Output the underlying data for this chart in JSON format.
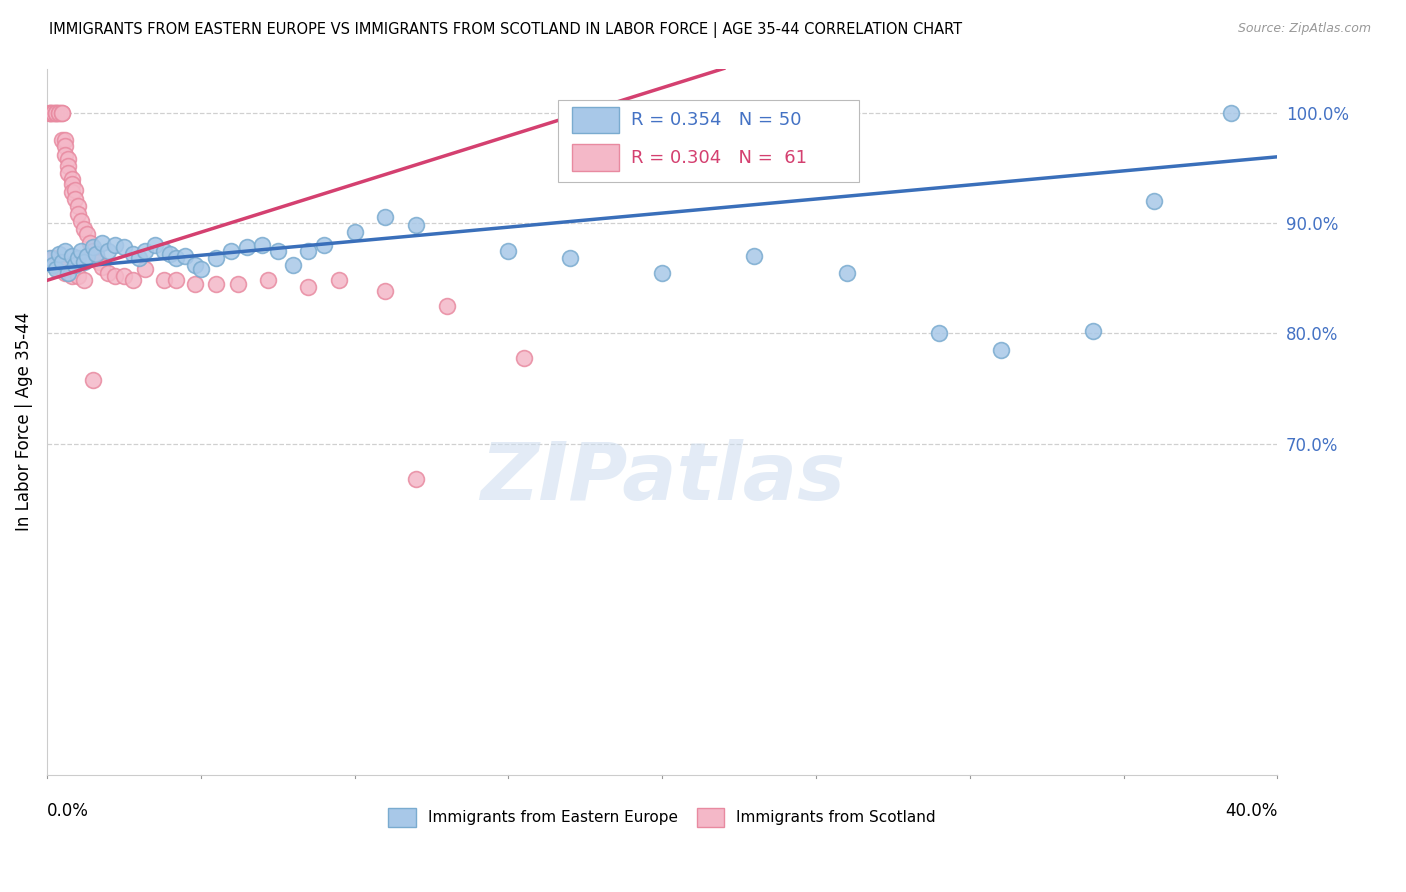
{
  "title": "IMMIGRANTS FROM EASTERN EUROPE VS IMMIGRANTS FROM SCOTLAND IN LABOR FORCE | AGE 35-44 CORRELATION CHART",
  "source": "Source: ZipAtlas.com",
  "ylabel_left": "In Labor Force | Age 35-44",
  "legend_blue_r": "R = 0.354",
  "legend_blue_n": "N = 50",
  "legend_pink_r": "R = 0.304",
  "legend_pink_n": "N =  61",
  "legend_blue_label": "Immigrants from Eastern Europe",
  "legend_pink_label": "Immigrants from Scotland",
  "watermark": "ZIPatlas",
  "blue_color": "#a8c8e8",
  "blue_edge_color": "#7aabcf",
  "pink_color": "#f4b8c8",
  "pink_edge_color": "#e88aa0",
  "blue_line_color": "#3a6fba",
  "pink_line_color": "#d44070",
  "xmin": 0.0,
  "xmax": 0.4,
  "ymin": 0.4,
  "ymax": 1.04,
  "ytick_positions": [
    1.0,
    0.9,
    0.8,
    0.7
  ],
  "ytick_labels": [
    "100.0%",
    "90.0%",
    "80.0%",
    "70.0%"
  ],
  "blue_scatter_x": [
    0.001,
    0.002,
    0.003,
    0.004,
    0.005,
    0.006,
    0.007,
    0.008,
    0.009,
    0.01,
    0.011,
    0.012,
    0.013,
    0.015,
    0.016,
    0.018,
    0.02,
    0.022,
    0.025,
    0.028,
    0.03,
    0.032,
    0.035,
    0.038,
    0.04,
    0.042,
    0.045,
    0.048,
    0.05,
    0.055,
    0.06,
    0.065,
    0.07,
    0.075,
    0.08,
    0.085,
    0.09,
    0.1,
    0.11,
    0.12,
    0.15,
    0.17,
    0.2,
    0.23,
    0.26,
    0.29,
    0.31,
    0.34,
    0.36,
    0.385
  ],
  "blue_scatter_y": [
    0.868,
    0.862,
    0.858,
    0.872,
    0.865,
    0.875,
    0.855,
    0.87,
    0.862,
    0.868,
    0.875,
    0.865,
    0.87,
    0.878,
    0.872,
    0.882,
    0.875,
    0.88,
    0.878,
    0.872,
    0.868,
    0.875,
    0.88,
    0.875,
    0.872,
    0.868,
    0.87,
    0.862,
    0.858,
    0.868,
    0.875,
    0.878,
    0.88,
    0.875,
    0.862,
    0.875,
    0.88,
    0.892,
    0.905,
    0.898,
    0.875,
    0.868,
    0.855,
    0.87,
    0.855,
    0.8,
    0.785,
    0.802,
    0.92,
    1.0
  ],
  "pink_scatter_x": [
    0.001,
    0.001,
    0.001,
    0.002,
    0.002,
    0.003,
    0.003,
    0.003,
    0.004,
    0.004,
    0.005,
    0.005,
    0.005,
    0.006,
    0.006,
    0.006,
    0.007,
    0.007,
    0.007,
    0.008,
    0.008,
    0.008,
    0.009,
    0.009,
    0.01,
    0.01,
    0.011,
    0.012,
    0.013,
    0.014,
    0.015,
    0.016,
    0.017,
    0.018,
    0.02,
    0.022,
    0.025,
    0.028,
    0.032,
    0.038,
    0.042,
    0.048,
    0.055,
    0.062,
    0.072,
    0.085,
    0.095,
    0.11,
    0.13,
    0.155,
    0.002,
    0.003,
    0.004,
    0.005,
    0.006,
    0.007,
    0.008,
    0.01,
    0.012,
    0.015,
    0.12
  ],
  "pink_scatter_y": [
    1.0,
    1.0,
    1.0,
    1.0,
    1.0,
    1.0,
    1.0,
    1.0,
    1.0,
    1.0,
    1.0,
    1.0,
    0.975,
    0.975,
    0.97,
    0.962,
    0.958,
    0.952,
    0.945,
    0.94,
    0.935,
    0.928,
    0.93,
    0.922,
    0.915,
    0.908,
    0.902,
    0.895,
    0.89,
    0.882,
    0.875,
    0.87,
    0.865,
    0.86,
    0.855,
    0.852,
    0.852,
    0.848,
    0.858,
    0.848,
    0.848,
    0.845,
    0.845,
    0.845,
    0.848,
    0.842,
    0.848,
    0.838,
    0.825,
    0.778,
    0.868,
    0.862,
    0.858,
    0.858,
    0.855,
    0.855,
    0.852,
    0.852,
    0.848,
    0.758,
    0.668
  ],
  "blue_line_x": [
    0.0,
    0.4
  ],
  "blue_line_y": [
    0.858,
    0.96
  ],
  "pink_line_x": [
    0.0,
    0.22
  ],
  "pink_line_y": [
    0.848,
    1.04
  ]
}
